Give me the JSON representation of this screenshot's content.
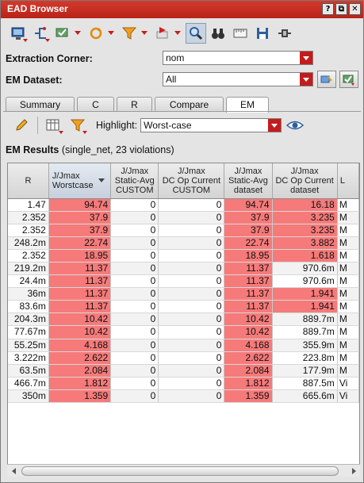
{
  "window": {
    "title": "EAD Browser"
  },
  "titlebar_buttons": [
    "?",
    "⧉",
    "✕"
  ],
  "extraction_corner": {
    "label": "Extraction Corner:",
    "value": "nom"
  },
  "em_dataset": {
    "label": "EM Dataset:",
    "value": "All"
  },
  "tabs": [
    {
      "label": "Summary",
      "active": false
    },
    {
      "label": "C",
      "active": false
    },
    {
      "label": "R",
      "active": false
    },
    {
      "label": "Compare",
      "active": false
    },
    {
      "label": "EM",
      "active": true
    }
  ],
  "highlight": {
    "label": "Highlight:",
    "value": "Worst-case"
  },
  "results": {
    "title": "EM Results",
    "detail": "(single_net, 23 violations)"
  },
  "columns": [
    {
      "id": "r",
      "label": "R"
    },
    {
      "id": "worst",
      "label": "J/Jmax\nWorstcase"
    },
    {
      "id": "static_custom",
      "label": "J/Jmax\nStatic-Avg\nCUSTOM"
    },
    {
      "id": "dcop_custom",
      "label": "J/Jmax\nDC Op Current\nCUSTOM"
    },
    {
      "id": "static_ds",
      "label": "J/Jmax\nStatic-Avg\ndataset"
    },
    {
      "id": "dcop_ds",
      "label": "J/Jmax\nDC Op Current\ndataset"
    },
    {
      "id": "last",
      "label": "L"
    }
  ],
  "rows": [
    {
      "r": "1.47",
      "worst": "94.74",
      "static_custom": "0",
      "dcop_custom": "0",
      "static_ds": "94.74",
      "dcop_ds": "16.18",
      "last": "M",
      "red": [
        1,
        4,
        5
      ]
    },
    {
      "r": "2.352",
      "worst": "37.9",
      "static_custom": "0",
      "dcop_custom": "0",
      "static_ds": "37.9",
      "dcop_ds": "3.235",
      "last": "M",
      "red": [
        1,
        4,
        5
      ]
    },
    {
      "r": "2.352",
      "worst": "37.9",
      "static_custom": "0",
      "dcop_custom": "0",
      "static_ds": "37.9",
      "dcop_ds": "3.235",
      "last": "M",
      "red": [
        1,
        4,
        5
      ]
    },
    {
      "r": "248.2m",
      "worst": "22.74",
      "static_custom": "0",
      "dcop_custom": "0",
      "static_ds": "22.74",
      "dcop_ds": "3.882",
      "last": "M",
      "red": [
        1,
        4,
        5
      ]
    },
    {
      "r": "2.352",
      "worst": "18.95",
      "static_custom": "0",
      "dcop_custom": "0",
      "static_ds": "18.95",
      "dcop_ds": "1.618",
      "last": "M",
      "red": [
        1,
        4,
        5
      ]
    },
    {
      "r": "219.2m",
      "worst": "11.37",
      "static_custom": "0",
      "dcop_custom": "0",
      "static_ds": "11.37",
      "dcop_ds": "970.6m",
      "last": "M",
      "red": [
        1,
        4
      ]
    },
    {
      "r": "24.4m",
      "worst": "11.37",
      "static_custom": "0",
      "dcop_custom": "0",
      "static_ds": "11.37",
      "dcop_ds": "970.6m",
      "last": "M",
      "red": [
        1,
        4
      ]
    },
    {
      "r": "36m",
      "worst": "11.37",
      "static_custom": "0",
      "dcop_custom": "0",
      "static_ds": "11.37",
      "dcop_ds": "1.941",
      "last": "M",
      "red": [
        1,
        4,
        5
      ]
    },
    {
      "r": "83.6m",
      "worst": "11.37",
      "static_custom": "0",
      "dcop_custom": "0",
      "static_ds": "11.37",
      "dcop_ds": "1.941",
      "last": "M",
      "red": [
        1,
        4,
        5
      ]
    },
    {
      "r": "204.3m",
      "worst": "10.42",
      "static_custom": "0",
      "dcop_custom": "0",
      "static_ds": "10.42",
      "dcop_ds": "889.7m",
      "last": "M",
      "red": [
        1,
        4
      ]
    },
    {
      "r": "77.67m",
      "worst": "10.42",
      "static_custom": "0",
      "dcop_custom": "0",
      "static_ds": "10.42",
      "dcop_ds": "889.7m",
      "last": "M",
      "red": [
        1,
        4
      ]
    },
    {
      "r": "55.25m",
      "worst": "4.168",
      "static_custom": "0",
      "dcop_custom": "0",
      "static_ds": "4.168",
      "dcop_ds": "355.9m",
      "last": "M",
      "red": [
        1,
        4
      ]
    },
    {
      "r": "3.222m",
      "worst": "2.622",
      "static_custom": "0",
      "dcop_custom": "0",
      "static_ds": "2.622",
      "dcop_ds": "223.8m",
      "last": "M",
      "red": [
        1,
        4
      ]
    },
    {
      "r": "63.5m",
      "worst": "2.084",
      "static_custom": "0",
      "dcop_custom": "0",
      "static_ds": "2.084",
      "dcop_ds": "177.9m",
      "last": "M",
      "red": [
        1,
        4
      ]
    },
    {
      "r": "466.7m",
      "worst": "1.812",
      "static_custom": "0",
      "dcop_custom": "0",
      "static_ds": "1.812",
      "dcop_ds": "887.5m",
      "last": "Vi",
      "red": [
        1,
        4
      ]
    },
    {
      "r": "350m",
      "worst": "1.359",
      "static_custom": "0",
      "dcop_custom": "0",
      "static_ds": "1.359",
      "dcop_ds": "665.6m",
      "last": "Vi",
      "red": [
        1,
        4
      ]
    }
  ],
  "colors": {
    "titlebar": "#c62b1f",
    "violation": "#f67a7a",
    "accent": "#c41c1c"
  },
  "icons": [
    "launch-icon",
    "probe-net-icon",
    "check-icon",
    "refresh-icon",
    "filter-icon",
    "flag-icon",
    "zoom-icon",
    "binoculars-icon",
    "ruler-icon",
    "save-icon",
    "plug-icon"
  ]
}
